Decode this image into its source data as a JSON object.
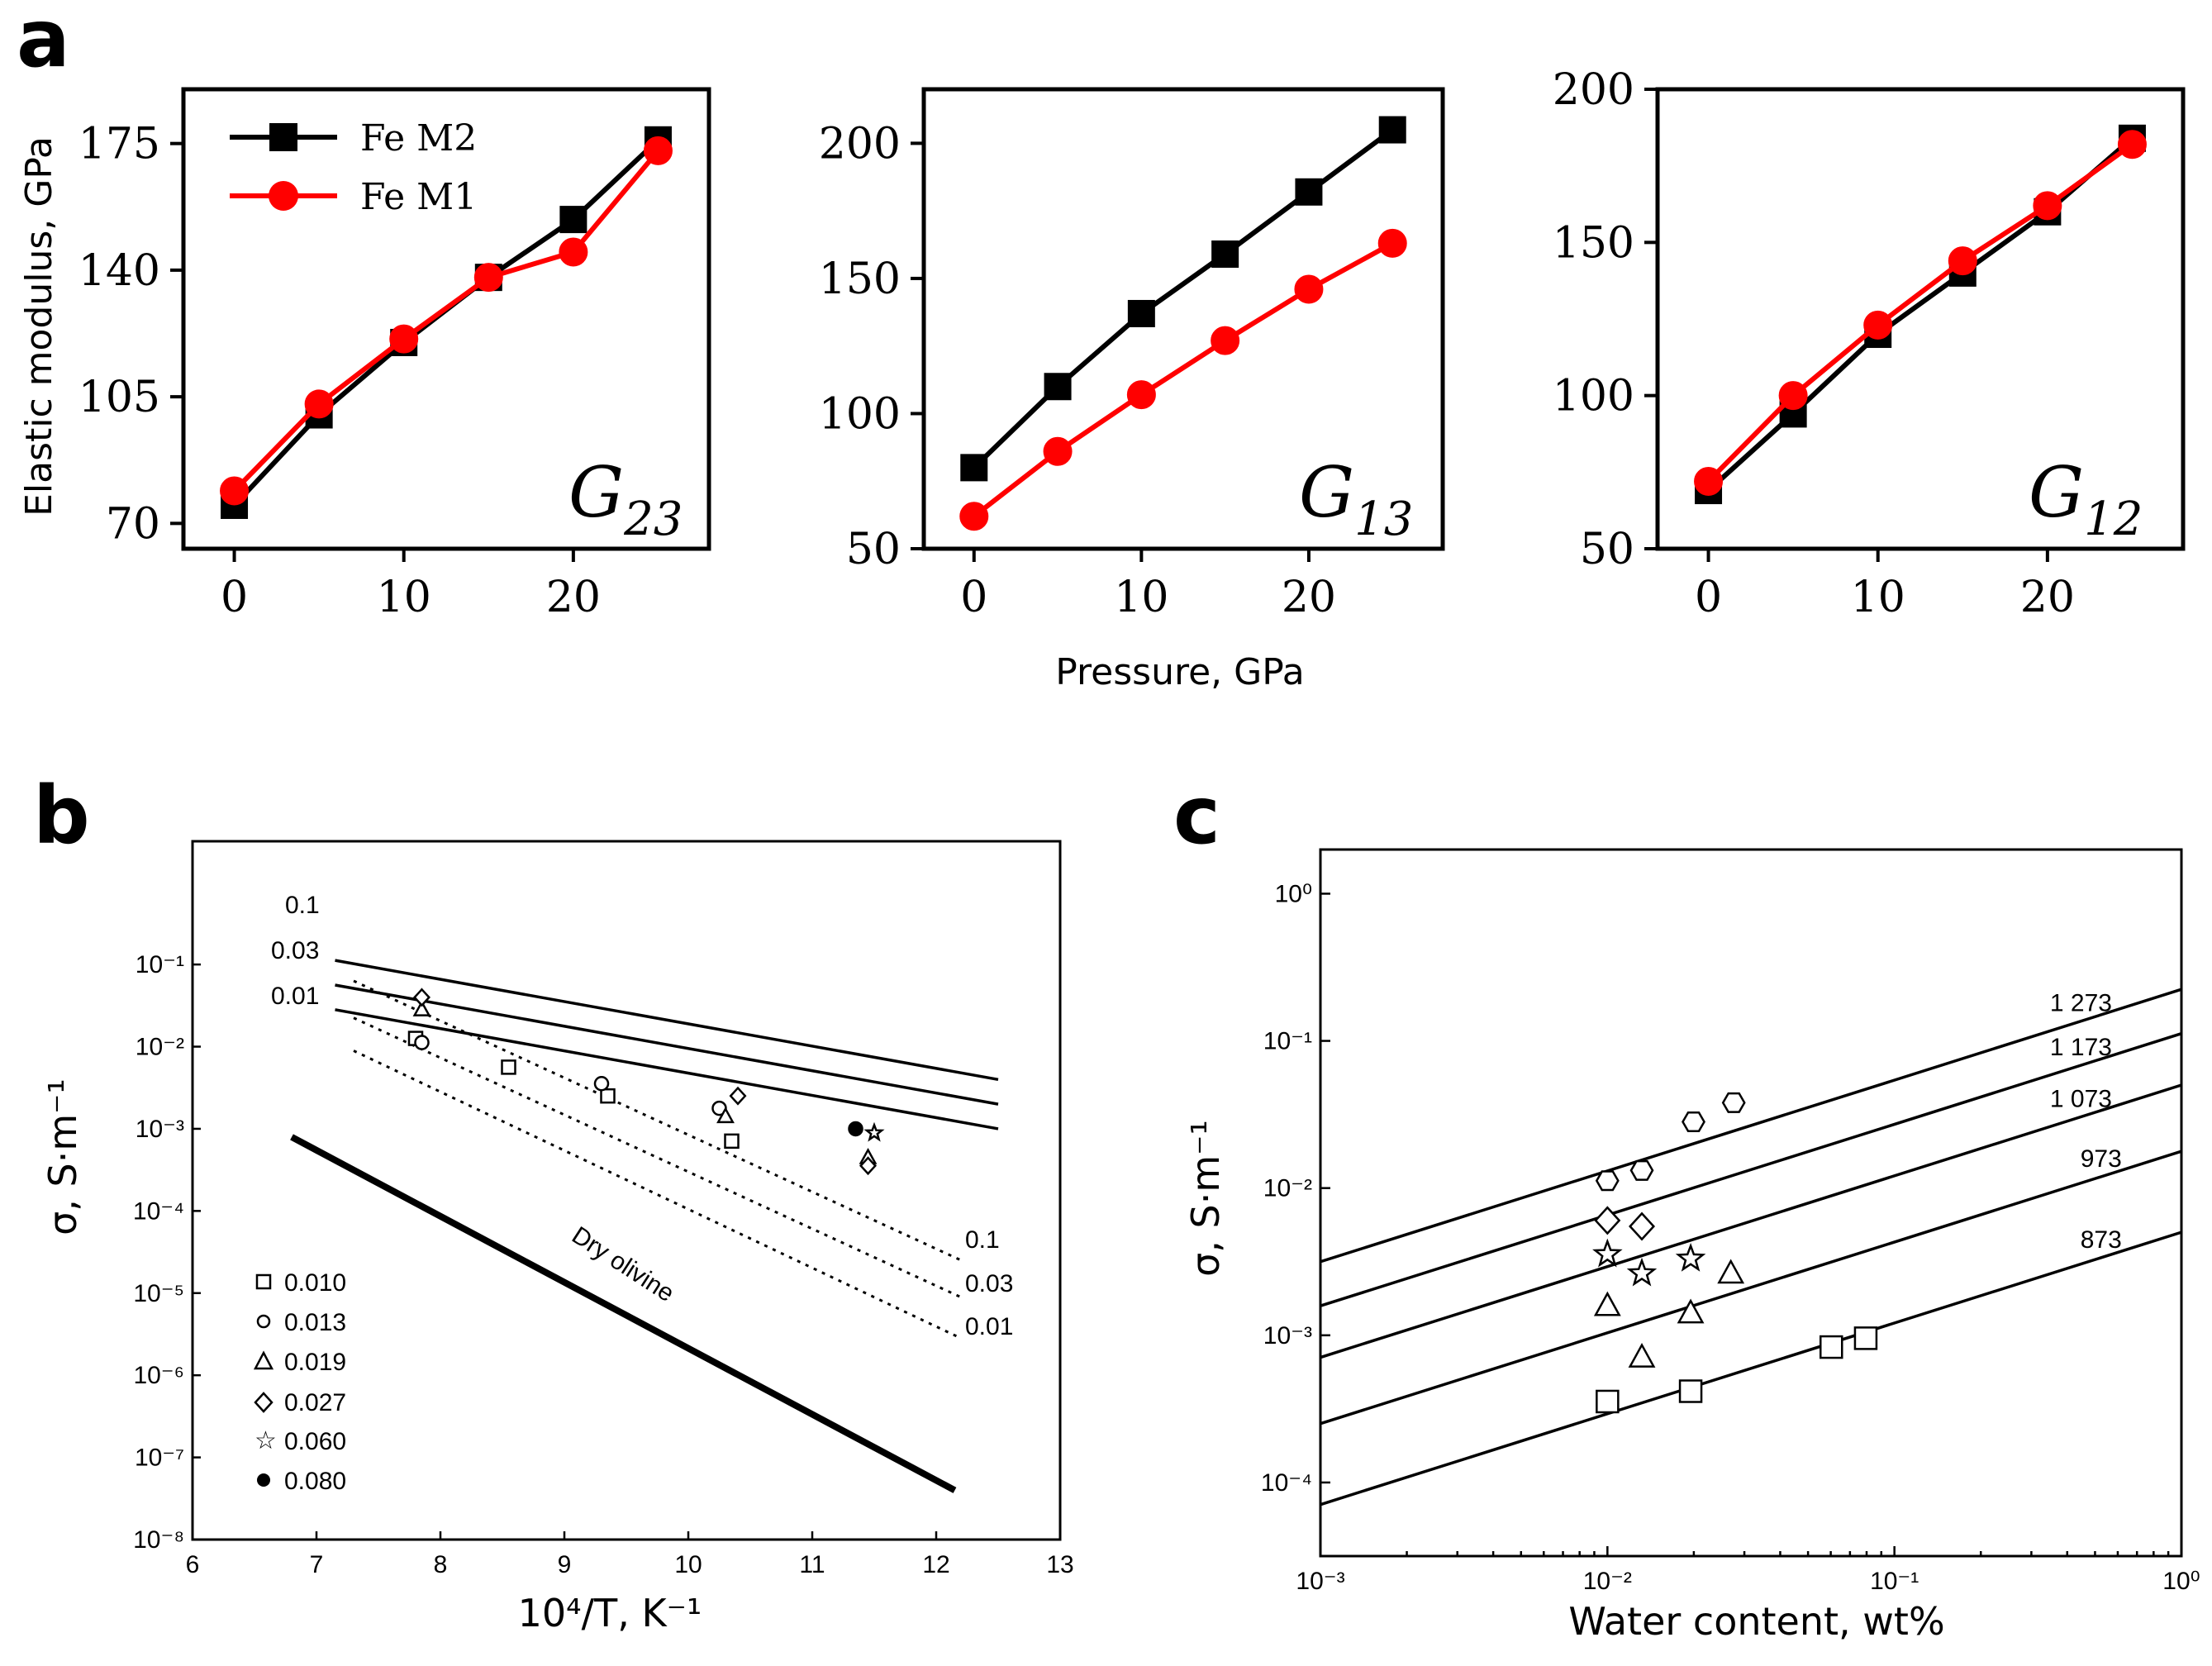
{
  "panels": {
    "a": "a",
    "b": "b",
    "c": "c"
  },
  "chart_data": [
    {
      "id": "a1",
      "type": "line",
      "annotation_main": "G",
      "annotation_sub": "23",
      "ylabel": "Elastic modulus, GPa",
      "x": [
        0,
        5,
        10,
        15,
        20,
        25
      ],
      "xticks": [
        0,
        10,
        20
      ],
      "xlim": [
        -3,
        28
      ],
      "yticks": [
        70,
        105,
        140,
        175
      ],
      "ylim": [
        63,
        190
      ],
      "series": [
        {
          "name": "Fe M2",
          "color": "#000000",
          "marker": "square",
          "values": [
            75,
            100,
            120,
            138,
            154,
            176
          ]
        },
        {
          "name": "Fe M1",
          "color": "#ff0000",
          "marker": "circle",
          "values": [
            79,
            103,
            121,
            138,
            145,
            173
          ]
        }
      ]
    },
    {
      "id": "a2",
      "type": "line",
      "annotation_main": "G",
      "annotation_sub": "13",
      "xlabel": "Pressure, GPa",
      "x": [
        0,
        5,
        10,
        15,
        20,
        25
      ],
      "xticks": [
        0,
        10,
        20
      ],
      "xlim": [
        -3,
        28
      ],
      "yticks": [
        50,
        100,
        150,
        200
      ],
      "ylim": [
        50,
        220
      ],
      "series": [
        {
          "name": "Fe M2",
          "color": "#000000",
          "marker": "square",
          "values": [
            80,
            110,
            137,
            159,
            182,
            205
          ]
        },
        {
          "name": "Fe M1",
          "color": "#ff0000",
          "marker": "circle",
          "values": [
            62,
            86,
            107,
            127,
            146,
            163
          ]
        }
      ]
    },
    {
      "id": "a3",
      "type": "line",
      "annotation_main": "G",
      "annotation_sub": "12",
      "x": [
        0,
        5,
        10,
        15,
        20,
        25
      ],
      "xticks": [
        0,
        10,
        20
      ],
      "xlim": [
        -3,
        28
      ],
      "yticks": [
        50,
        100,
        150,
        200
      ],
      "ylim": [
        50,
        200
      ],
      "series": [
        {
          "name": "Fe M2",
          "color": "#000000",
          "marker": "square",
          "values": [
            69,
            94,
            120,
            140,
            160,
            184
          ]
        },
        {
          "name": "Fe M1",
          "color": "#ff0000",
          "marker": "circle",
          "values": [
            72,
            100,
            123,
            144,
            162,
            182
          ]
        }
      ]
    },
    {
      "id": "b",
      "type": "line",
      "xlabel": "10⁴/T, K⁻¹",
      "ylabel": "σ, S·m⁻¹",
      "xlim": [
        6,
        13
      ],
      "xticks": [
        6,
        7,
        8,
        9,
        10,
        11,
        12,
        13
      ],
      "ylim_log10": [
        -8,
        0.5
      ],
      "yticks_log10": [
        -8,
        -7,
        -6,
        -5,
        -4,
        -3,
        -2,
        -1
      ],
      "ytick_labels": [
        "10⁻⁸",
        "10⁻⁷",
        "10⁻⁶",
        "10⁻⁵",
        "10⁻⁴",
        "10⁻³",
        "10⁻²",
        "10⁻¹"
      ],
      "lines": [
        {
          "label": "0.1",
          "style": "solid",
          "x": [
            7.15,
            12.5
          ],
          "log_y": [
            -0.95,
            -2.4
          ]
        },
        {
          "label": "0.03",
          "style": "solid",
          "x": [
            7.15,
            12.5
          ],
          "log_y": [
            -1.25,
            -2.7
          ]
        },
        {
          "label": "0.01",
          "style": "solid",
          "x": [
            7.15,
            12.5
          ],
          "log_y": [
            -1.55,
            -3.0
          ]
        },
        {
          "label": "0.1",
          "style": "dotted",
          "x": [
            7.3,
            12.2
          ],
          "log_y": [
            -1.2,
            -4.6
          ]
        },
        {
          "label": "0.03",
          "style": "dotted",
          "x": [
            7.3,
            12.2
          ],
          "log_y": [
            -1.65,
            -5.05
          ]
        },
        {
          "label": "0.01",
          "style": "dotted",
          "x": [
            7.3,
            12.2
          ],
          "log_y": [
            -2.05,
            -5.55
          ]
        },
        {
          "label": "Dry olivine",
          "style": "thick",
          "x": [
            6.8,
            12.15
          ],
          "log_y": [
            -3.1,
            -7.4
          ]
        }
      ],
      "series": [
        {
          "name": "0.010",
          "marker": "square",
          "x": [
            7.8,
            8.55,
            9.35,
            10.35
          ],
          "log_y": [
            -1.9,
            -2.25,
            -2.6,
            -3.15
          ]
        },
        {
          "name": "0.013",
          "marker": "circle",
          "x": [
            7.85,
            9.3,
            10.25
          ],
          "log_y": [
            -1.95,
            -2.45,
            -2.75
          ]
        },
        {
          "name": "0.019",
          "marker": "triangle",
          "x": [
            7.85,
            10.3,
            11.45
          ],
          "log_y": [
            -1.55,
            -2.85,
            -3.35
          ]
        },
        {
          "name": "0.027",
          "marker": "diamond",
          "x": [
            7.85,
            10.4,
            11.45
          ],
          "log_y": [
            -1.4,
            -2.6,
            -3.45
          ]
        },
        {
          "name": "0.060",
          "marker": "star",
          "x": [
            11.5
          ],
          "log_y": [
            -3.05
          ]
        },
        {
          "name": "0.080",
          "marker": "filled-circle",
          "x": [
            11.35
          ],
          "log_y": [
            -3.0
          ]
        }
      ],
      "legend_title_values": [
        "0.010",
        "0.013",
        "0.019",
        "0.027",
        "0.060",
        "0.080"
      ],
      "annotations": [
        "0.1",
        "0.03",
        "0.01",
        "0.1",
        "0.03",
        "0.01",
        "Dry olivine"
      ]
    },
    {
      "id": "c",
      "type": "line",
      "xlabel": "Water content, wt%",
      "ylabel": "σ, S·m⁻¹",
      "xlim_log10": [
        -3,
        0
      ],
      "xticks_log10": [
        -3,
        -2,
        -1,
        0
      ],
      "xtick_labels": [
        "10⁻³",
        "10⁻²",
        "10⁻¹",
        "10⁰"
      ],
      "ylim_log10": [
        -4.5,
        0.3
      ],
      "yticks_log10": [
        -4,
        -3,
        -2,
        -1,
        0
      ],
      "ytick_labels": [
        "10⁻⁴",
        "10⁻³",
        "10⁻²",
        "10⁻¹",
        "10⁰"
      ],
      "lines": [
        {
          "label": "1 273",
          "log_x": [
            -3,
            0
          ],
          "log_y": [
            -2.5,
            -0.65
          ]
        },
        {
          "label": "1 173",
          "log_x": [
            -3,
            0
          ],
          "log_y": [
            -2.8,
            -0.95
          ]
        },
        {
          "label": "1 073",
          "log_x": [
            -3,
            0
          ],
          "log_y": [
            -3.15,
            -1.3
          ]
        },
        {
          "label": "973",
          "log_x": [
            -3,
            0
          ],
          "log_y": [
            -3.6,
            -1.75
          ]
        },
        {
          "label": "873",
          "log_x": [
            -3,
            0
          ],
          "log_y": [
            -4.15,
            -2.3
          ]
        }
      ],
      "series": [
        {
          "name": "1273",
          "marker": "hexagon",
          "log_x": [
            -2.0,
            -1.88,
            -1.7,
            -1.56
          ],
          "log_y": [
            -1.95,
            -1.88,
            -1.55,
            -1.42
          ]
        },
        {
          "name": "1173",
          "marker": "diamond",
          "log_x": [
            -2.0,
            -1.88
          ],
          "log_y": [
            -2.22,
            -2.26
          ]
        },
        {
          "name": "1073",
          "marker": "star",
          "log_x": [
            -2.0,
            -1.88,
            -1.71
          ],
          "log_y": [
            -2.45,
            -2.58,
            -2.48
          ]
        },
        {
          "name": "973",
          "marker": "triangle",
          "log_x": [
            -2.0,
            -1.88,
            -1.71,
            -1.57
          ],
          "log_y": [
            -2.8,
            -3.15,
            -2.85,
            -2.58
          ]
        },
        {
          "name": "873",
          "marker": "square",
          "log_x": [
            -2.0,
            -1.71,
            -1.22,
            -1.1
          ],
          "log_y": [
            -3.45,
            -3.38,
            -3.08,
            -3.02
          ]
        }
      ]
    }
  ]
}
